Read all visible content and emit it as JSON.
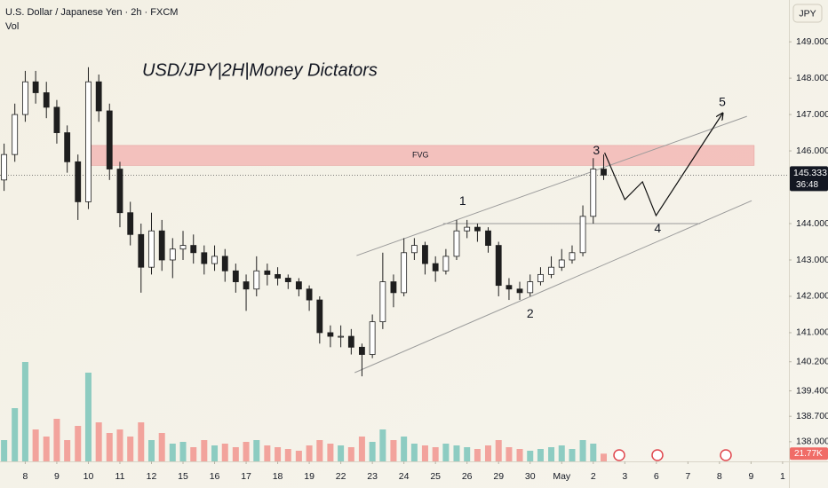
{
  "chart_data": {
    "type": "candlestick",
    "title": "USD/JPY|2H|Money Dictators",
    "symbol": "U.S. Dollar / Japanese Yen · 2h · FXCM",
    "volume_title": "Vol",
    "currency": "JPY",
    "x": [
      -0.67,
      -0.33,
      0,
      0.33,
      0.67,
      1,
      1.33,
      1.67,
      2,
      2.33,
      2.67,
      3,
      3.33,
      3.67,
      4,
      4.33,
      4.67,
      5,
      5.33,
      5.67,
      6,
      6.33,
      6.67,
      7,
      7.33,
      7.67,
      8,
      8.33,
      8.67,
      9,
      9.33,
      9.67,
      10,
      10.33,
      10.67,
      11,
      11.33,
      11.67,
      12,
      12.33,
      12.67,
      13,
      13.33,
      13.67,
      14,
      14.33,
      14.67,
      15,
      15.33,
      15.67,
      16,
      16.33,
      16.67,
      17,
      17.33,
      17.67,
      18,
      18.33
    ],
    "open": [
      145.2,
      145.9,
      147.0,
      147.9,
      147.6,
      147.2,
      146.5,
      145.7,
      144.6,
      147.9,
      147.1,
      145.5,
      144.3,
      143.7,
      142.8,
      143.8,
      143.0,
      143.3,
      143.4,
      143.2,
      142.9,
      143.1,
      142.7,
      142.4,
      142.2,
      142.7,
      142.6,
      142.5,
      142.4,
      142.2,
      141.9,
      141.0,
      140.9,
      140.9,
      140.6,
      140.4,
      141.3,
      142.4,
      142.1,
      143.2,
      143.4,
      142.9,
      142.7,
      143.1,
      143.8,
      143.9,
      143.8,
      143.4,
      142.3,
      142.2,
      142.1,
      142.4,
      142.6,
      142.8,
      143.0,
      143.2,
      144.2,
      145.5
    ],
    "high": [
      146.2,
      147.3,
      148.2,
      148.2,
      147.9,
      147.4,
      146.7,
      145.9,
      148.3,
      148.1,
      147.3,
      145.7,
      144.6,
      144.0,
      144.3,
      144.1,
      143.6,
      143.8,
      143.7,
      143.4,
      143.4,
      143.3,
      142.9,
      142.6,
      143.1,
      142.9,
      142.8,
      142.6,
      142.5,
      142.3,
      142.0,
      141.2,
      141.2,
      141.1,
      140.7,
      141.5,
      143.2,
      142.6,
      143.6,
      143.6,
      143.5,
      143.1,
      143.3,
      144.1,
      144.1,
      144.0,
      143.9,
      143.5,
      142.5,
      142.4,
      142.6,
      142.8,
      143.1,
      143.3,
      143.4,
      144.5,
      145.8,
      145.9
    ],
    "low": [
      144.9,
      145.7,
      146.8,
      147.3,
      146.9,
      146.2,
      145.4,
      144.1,
      144.4,
      146.8,
      145.2,
      143.9,
      143.4,
      142.1,
      142.6,
      142.7,
      142.5,
      143.0,
      142.9,
      142.6,
      142.7,
      142.4,
      142.1,
      141.6,
      142.0,
      142.3,
      142.3,
      142.2,
      142.0,
      141.6,
      140.7,
      140.6,
      140.6,
      140.4,
      139.8,
      140.3,
      141.1,
      141.7,
      142.0,
      143.0,
      142.6,
      142.4,
      142.6,
      143.0,
      143.6,
      143.5,
      143.2,
      142.0,
      141.9,
      141.9,
      142.0,
      142.3,
      142.5,
      142.7,
      142.9,
      143.1,
      144.0,
      145.2
    ],
    "close": [
      145.9,
      147.0,
      147.9,
      147.6,
      147.2,
      146.5,
      145.7,
      144.6,
      147.9,
      147.1,
      145.5,
      144.3,
      143.7,
      142.8,
      143.8,
      143.0,
      143.3,
      143.4,
      143.2,
      142.9,
      143.1,
      142.7,
      142.4,
      142.2,
      142.7,
      142.6,
      142.5,
      142.4,
      142.2,
      141.9,
      141.0,
      140.9,
      140.9,
      140.6,
      140.4,
      141.3,
      142.4,
      142.1,
      143.2,
      143.4,
      142.9,
      142.7,
      143.1,
      143.8,
      143.9,
      143.8,
      143.4,
      142.3,
      142.2,
      142.1,
      142.4,
      142.6,
      142.8,
      143.0,
      143.2,
      144.2,
      145.5,
      145.333
    ],
    "up_color": "#ffffff",
    "down_color": "#1e1e1e",
    "wick_color": "#1e1e1e",
    "volume": {
      "values": [
        60,
        150,
        280,
        90,
        70,
        120,
        60,
        100,
        250,
        110,
        80,
        90,
        70,
        110,
        60,
        80,
        50,
        55,
        40,
        60,
        45,
        50,
        40,
        55,
        60,
        45,
        40,
        35,
        30,
        45,
        60,
        50,
        45,
        40,
        70,
        55,
        90,
        60,
        70,
        50,
        45,
        40,
        50,
        45,
        40,
        35,
        45,
        60,
        40,
        35,
        30,
        35,
        40,
        45,
        35,
        60,
        50,
        21.77
      ],
      "ylim": [
        0,
        300
      ],
      "up_color": "#26a69a",
      "down_color": "#ef5350",
      "last": {
        "value": 21.77,
        "label": "21.77K"
      }
    },
    "xlim": [
      -0.8,
      24.2
    ],
    "ylim": [
      137.46,
      150.15
    ],
    "grid": false,
    "yticks": [
      {
        "value": 149,
        "label": "149.000"
      },
      {
        "value": 148,
        "label": "148.000"
      },
      {
        "value": 147,
        "label": "147.000"
      },
      {
        "value": 146,
        "label": "146.000"
      },
      {
        "value": 144,
        "label": "144.000"
      },
      {
        "value": 143,
        "label": "143.000"
      },
      {
        "value": 142,
        "label": "142.000"
      },
      {
        "value": 141,
        "label": "141.000"
      },
      {
        "value": 140.2,
        "label": "140.200"
      },
      {
        "value": 139.4,
        "label": "139.400"
      },
      {
        "value": 138.7,
        "label": "138.700"
      },
      {
        "value": 138,
        "label": "138.000"
      }
    ],
    "xticks": [
      {
        "value": 0,
        "label": "8"
      },
      {
        "value": 1,
        "label": "9"
      },
      {
        "value": 2,
        "label": "10"
      },
      {
        "value": 3,
        "label": "11"
      },
      {
        "value": 4,
        "label": "12"
      },
      {
        "value": 5,
        "label": "15"
      },
      {
        "value": 6,
        "label": "16"
      },
      {
        "value": 7,
        "label": "17"
      },
      {
        "value": 8,
        "label": "18"
      },
      {
        "value": 9,
        "label": "19"
      },
      {
        "value": 10,
        "label": "22"
      },
      {
        "value": 11,
        "label": "23"
      },
      {
        "value": 12,
        "label": "24"
      },
      {
        "value": 13,
        "label": "25"
      },
      {
        "value": 14,
        "label": "26"
      },
      {
        "value": 15,
        "label": "29"
      },
      {
        "value": 16,
        "label": "30"
      },
      {
        "value": 17,
        "label": "May"
      },
      {
        "value": 18,
        "label": "2"
      },
      {
        "value": 19,
        "label": "3"
      },
      {
        "value": 20,
        "label": "6"
      },
      {
        "value": 21,
        "label": "7"
      },
      {
        "value": 22,
        "label": "8"
      },
      {
        "value": 23,
        "label": "9"
      },
      {
        "value": 24,
        "label": "1"
      }
    ],
    "last_price": {
      "value": 145.333,
      "countdown": "36:48"
    },
    "zones": [
      {
        "label": "FVG",
        "x": [
          1.95,
          23.1
        ],
        "y": [
          145.6,
          146.15
        ],
        "color": "#f2b8b5"
      }
    ],
    "lines": [
      {
        "points": [
          [
            10.5,
            143.12
          ],
          [
            22.87,
            146.95
          ]
        ],
        "color": "#9a9a9a"
      },
      {
        "points": [
          [
            10.44,
            139.9
          ],
          [
            23.02,
            144.63
          ]
        ],
        "color": "#9a9a9a"
      },
      {
        "points": [
          [
            13.24,
            144.0
          ],
          [
            21.39,
            144.0
          ]
        ],
        "color": "#9a9a9a"
      }
    ],
    "projection": {
      "x": [
        18.36,
        19.0,
        19.56,
        19.99,
        22.09
      ],
      "y": [
        145.95,
        144.66,
        145.15,
        144.22,
        147.02
      ],
      "color": "#111111"
    },
    "wave_labels": [
      {
        "text": "1",
        "x": 13.86,
        "y": 144.6
      },
      {
        "text": "2",
        "x": 16.0,
        "y": 141.5
      },
      {
        "text": "3",
        "x": 18.1,
        "y": 146.0
      },
      {
        "text": "4",
        "x": 20.04,
        "y": 143.85
      },
      {
        "text": "5",
        "x": 22.09,
        "y": 147.32
      }
    ]
  }
}
